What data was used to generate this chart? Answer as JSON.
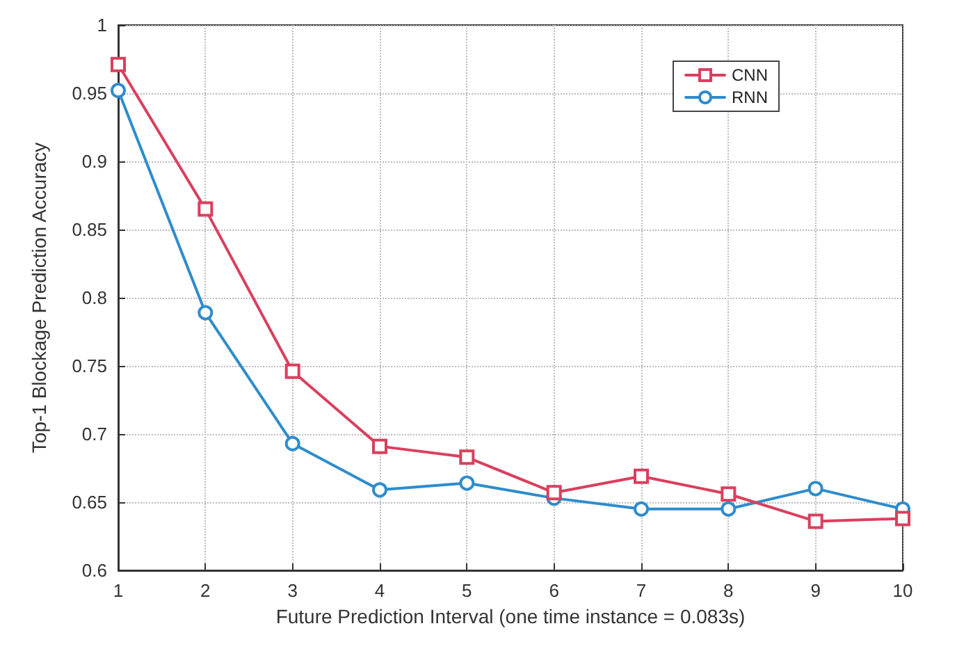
{
  "chart_data": {
    "type": "line",
    "xlabel": "Future Prediction Interval (one time instance = 0.083s)",
    "ylabel": "Top-1 Blockage Prediction Accuracy",
    "x": [
      1,
      2,
      3,
      4,
      5,
      6,
      7,
      8,
      9,
      10
    ],
    "series": [
      {
        "name": "CNN",
        "color": "#d9405e",
        "marker": "square",
        "values": [
          0.971,
          0.865,
          0.746,
          0.691,
          0.683,
          0.657,
          0.669,
          0.656,
          0.636,
          0.638
        ]
      },
      {
        "name": "RNN",
        "color": "#2e8ccc",
        "marker": "circle",
        "values": [
          0.952,
          0.789,
          0.693,
          0.659,
          0.664,
          0.653,
          0.645,
          0.645,
          0.66,
          0.645
        ]
      }
    ],
    "xlim": [
      1,
      10
    ],
    "xticks": [
      1,
      2,
      3,
      4,
      5,
      6,
      7,
      8,
      9,
      10
    ],
    "ylim": [
      0.6,
      1
    ],
    "yticks": [
      0.6,
      0.65,
      0.7,
      0.75,
      0.8,
      0.85,
      0.9,
      0.95,
      1
    ],
    "grid": true,
    "legend": "top right",
    "line_style": "solid"
  }
}
